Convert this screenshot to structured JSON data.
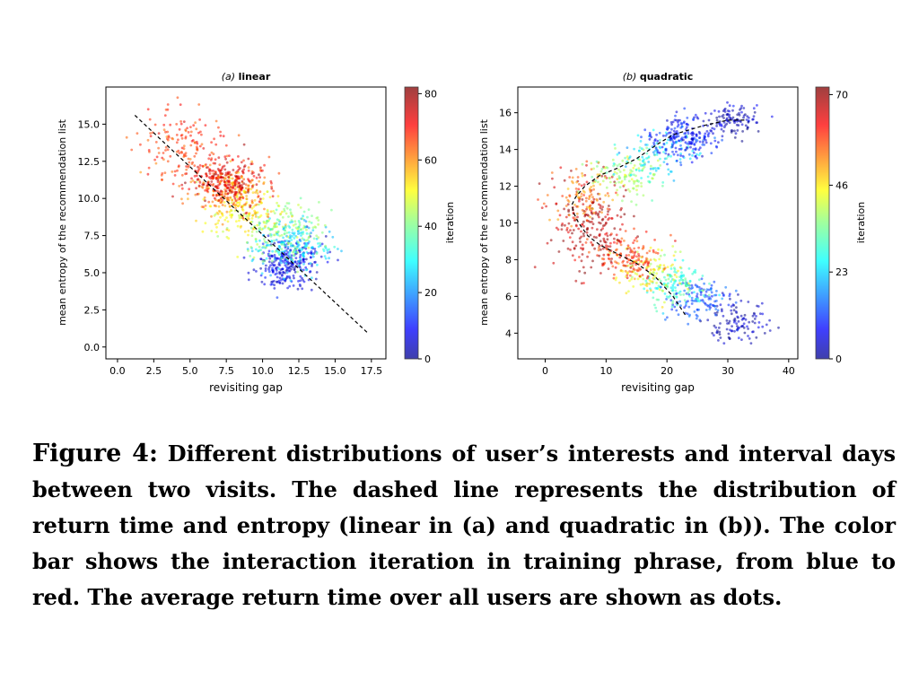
{
  "caption": {
    "label": "Figure 4:",
    "text": "Different distributions of user’s interests and interval days between two visits. The dashed line represents the distribution of return time and entropy (linear in (a) and quadratic in (b)). The color bar shows the interaction iteration in training phrase, from blue to red. The average return time over all users are shown as dots."
  },
  "chart_data": [
    {
      "type": "scatter",
      "title_prefix": "(a)",
      "title_main": "linear",
      "xlabel": "revisiting gap",
      "ylabel": "mean entropy of the recommendation list",
      "xlim": [
        -0.8,
        18.5
      ],
      "ylim": [
        -0.8,
        17.5
      ],
      "xticks": [
        "0.0",
        "2.5",
        "5.0",
        "7.5",
        "10.0",
        "12.5",
        "15.0",
        "17.5"
      ],
      "yticks": [
        "0.0",
        "2.5",
        "5.0",
        "7.5",
        "10.0",
        "12.5",
        "15.0"
      ],
      "colorbar": {
        "label": "iteration",
        "min": 0,
        "max": 82,
        "ticks": [
          "0",
          "20",
          "40",
          "60",
          "80"
        ]
      },
      "dashed_line": {
        "x": [
          1.2,
          17.3
        ],
        "y": [
          15.6,
          0.9
        ]
      },
      "clusters": [
        {
          "iteration": 8,
          "x": [
            11.8,
            1.1
          ],
          "y": [
            5.6,
            0.8
          ],
          "n": 260
        },
        {
          "iteration": 28,
          "x": [
            12.0,
            1.4
          ],
          "y": [
            6.8,
            0.9
          ],
          "n": 180
        },
        {
          "iteration": 42,
          "x": [
            11.5,
            1.6
          ],
          "y": [
            7.9,
            1.0
          ],
          "n": 170
        },
        {
          "iteration": 52,
          "x": [
            8.5,
            1.5
          ],
          "y": [
            9.3,
            1.0
          ],
          "n": 170
        },
        {
          "iteration": 62,
          "x": [
            7.8,
            1.3
          ],
          "y": [
            10.6,
            0.9
          ],
          "n": 170
        },
        {
          "iteration": 74,
          "x": [
            7.6,
            1.2
          ],
          "y": [
            11.2,
            0.8
          ],
          "n": 240
        },
        {
          "iteration": 68,
          "x": [
            4.5,
            1.4
          ],
          "y": [
            13.5,
            1.2
          ],
          "n": 150
        }
      ]
    },
    {
      "type": "scatter",
      "title_prefix": "(b)",
      "title_main": "quadratic",
      "xlabel": "revisiting gap",
      "ylabel": "mean entropy of the recommendation list",
      "xlim": [
        -4.5,
        41.5
      ],
      "ylim": [
        2.6,
        17.4
      ],
      "xticks": [
        "0",
        "10",
        "20",
        "30",
        "40"
      ],
      "yticks": [
        "4",
        "6",
        "8",
        "10",
        "12",
        "14",
        "16"
      ],
      "colorbar": {
        "label": "iteration",
        "min": 0,
        "max": 72,
        "ticks": [
          "0",
          "23",
          "46",
          "70"
        ]
      },
      "dashed_line": {
        "x": [
          23.0,
          21.0,
          18.0,
          15.0,
          12.0,
          9.0,
          7.0,
          5.5,
          4.6,
          4.4,
          5.0,
          6.5,
          9.0,
          12.0,
          15.0,
          18.5,
          21.0,
          23.0,
          26.0,
          30.0,
          33.0
        ],
        "y": [
          5.0,
          6.0,
          7.1,
          7.8,
          8.3,
          8.8,
          9.3,
          10.0,
          10.6,
          11.0,
          11.4,
          12.0,
          12.6,
          13.0,
          13.5,
          14.3,
          14.8,
          15.0,
          15.3,
          15.6,
          15.6
        ]
      },
      "clusters": [
        {
          "iteration": 4,
          "x": [
            31.5,
            2.5
          ],
          "y": [
            4.6,
            0.6
          ],
          "n": 110
        },
        {
          "iteration": 14,
          "x": [
            25.5,
            2.5
          ],
          "y": [
            5.8,
            0.6
          ],
          "n": 120
        },
        {
          "iteration": 30,
          "x": [
            21.5,
            2.5
          ],
          "y": [
            6.6,
            0.6
          ],
          "n": 130
        },
        {
          "iteration": 44,
          "x": [
            17.0,
            3.0
          ],
          "y": [
            7.4,
            0.6
          ],
          "n": 110
        },
        {
          "iteration": 60,
          "x": [
            13.5,
            2.5
          ],
          "y": [
            8.2,
            0.6
          ],
          "n": 140
        },
        {
          "iteration": 68,
          "x": [
            7.0,
            3.0
          ],
          "y": [
            10.0,
            1.2
          ],
          "n": 220
        },
        {
          "iteration": 54,
          "x": [
            6.5,
            2.5
          ],
          "y": [
            11.5,
            0.7
          ],
          "n": 90
        },
        {
          "iteration": 38,
          "x": [
            13.0,
            3.0
          ],
          "y": [
            12.6,
            0.6
          ],
          "n": 120
        },
        {
          "iteration": 26,
          "x": [
            18.5,
            3.0
          ],
          "y": [
            13.8,
            0.6
          ],
          "n": 100
        },
        {
          "iteration": 10,
          "x": [
            23.0,
            2.5
          ],
          "y": [
            14.6,
            0.6
          ],
          "n": 200
        },
        {
          "iteration": 4,
          "x": [
            31.0,
            2.5
          ],
          "y": [
            15.6,
            0.4
          ],
          "n": 110
        }
      ]
    }
  ]
}
